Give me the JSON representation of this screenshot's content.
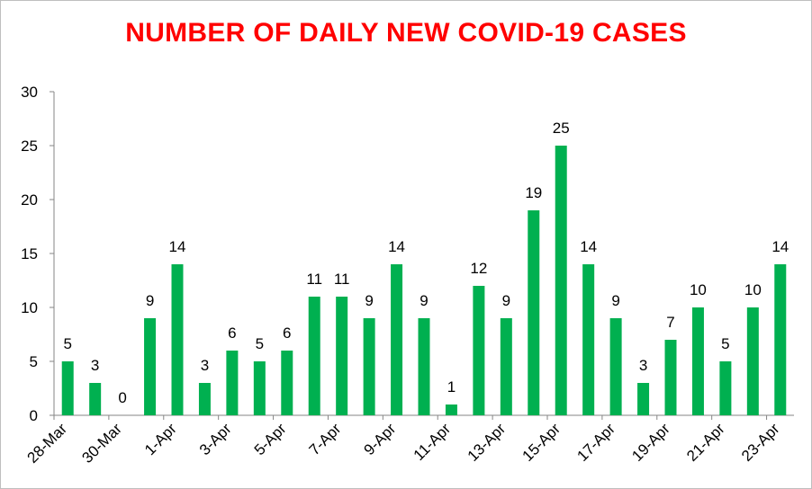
{
  "chart_data": {
    "type": "bar",
    "title": "NUMBER OF DAILY NEW COVID-19 CASES",
    "xlabel": "",
    "ylabel": "",
    "ylim": [
      0,
      30
    ],
    "yticks": [
      0,
      5,
      10,
      15,
      20,
      25,
      30
    ],
    "grid": false,
    "legend": "none",
    "bar_color": "#00b050",
    "title_color": "#ff0000",
    "categories": [
      "28-Mar",
      "29-Mar",
      "30-Mar",
      "31-Mar",
      "1-Apr",
      "2-Apr",
      "3-Apr",
      "4-Apr",
      "5-Apr",
      "6-Apr",
      "7-Apr",
      "8-Apr",
      "9-Apr",
      "10-Apr",
      "11-Apr",
      "12-Apr",
      "13-Apr",
      "14-Apr",
      "15-Apr",
      "16-Apr",
      "17-Apr",
      "18-Apr",
      "19-Apr",
      "20-Apr",
      "21-Apr",
      "22-Apr",
      "23-Apr"
    ],
    "visible_tick_labels": [
      "28-Mar",
      "30-Mar",
      "1-Apr",
      "3-Apr",
      "5-Apr",
      "7-Apr",
      "9-Apr",
      "11-Apr",
      "13-Apr",
      "15-Apr",
      "17-Apr",
      "19-Apr",
      "21-Apr",
      "23-Apr"
    ],
    "values": [
      5,
      3,
      0,
      9,
      14,
      3,
      6,
      5,
      6,
      11,
      11,
      9,
      14,
      9,
      1,
      12,
      9,
      19,
      25,
      14,
      9,
      3,
      7,
      10,
      5,
      10,
      14
    ]
  }
}
